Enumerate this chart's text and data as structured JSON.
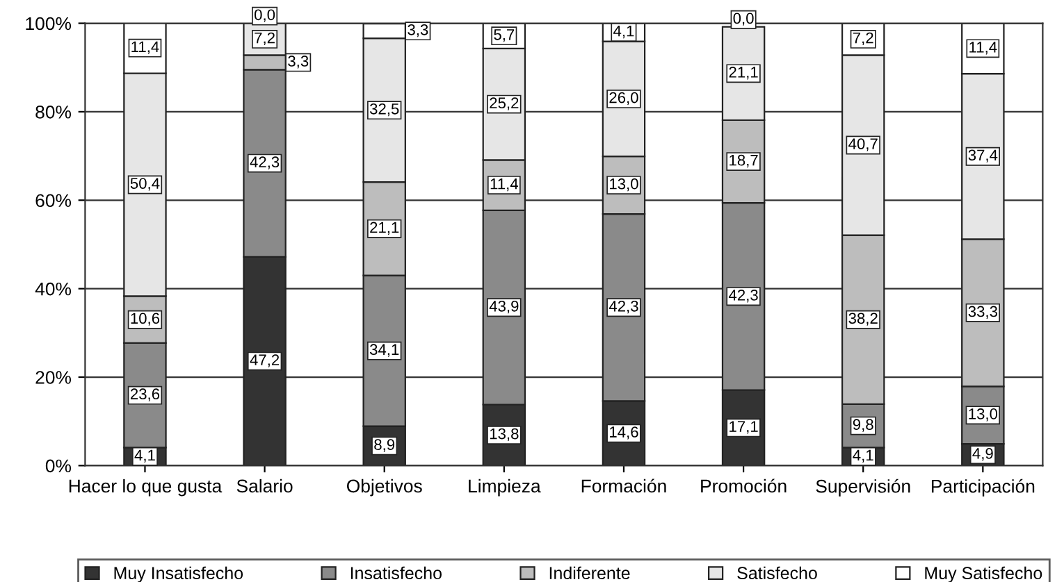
{
  "chart_data": {
    "type": "bar",
    "stacked": true,
    "categories": [
      "Hacer lo que gusta",
      "Salario",
      "Objetivos",
      "Limpieza",
      "Formación",
      "Promoción",
      "Supervisión",
      "Participación"
    ],
    "series": [
      {
        "name": "Muy Insatisfecho",
        "color": "#333333",
        "values": [
          4.1,
          47.2,
          8.9,
          13.8,
          14.6,
          17.1,
          4.1,
          4.9
        ],
        "value_labels": [
          "4,1",
          "47,2",
          "8,9",
          "13,8",
          "14,6",
          "17,1",
          "4,1",
          "4,9"
        ]
      },
      {
        "name": "Insatisfecho",
        "color": "#8a8a8a",
        "values": [
          23.6,
          42.3,
          34.1,
          43.9,
          42.3,
          42.3,
          9.8,
          13.0
        ],
        "value_labels": [
          "23,6",
          "42,3",
          "34,1",
          "43,9",
          "42,3",
          "42,3",
          "9,8",
          "13,0"
        ]
      },
      {
        "name": "Indiferente",
        "color": "#bdbdbd",
        "values": [
          10.6,
          3.3,
          21.1,
          11.4,
          13.0,
          18.7,
          38.2,
          33.3
        ],
        "value_labels": [
          "10,6",
          "3,3",
          "21,1",
          "11,4",
          "13,0",
          "18,7",
          "38,2",
          "33,3"
        ]
      },
      {
        "name": "Satisfecho",
        "color": "#e6e6e6",
        "values": [
          50.4,
          7.2,
          32.5,
          25.2,
          26.0,
          21.1,
          40.7,
          37.4
        ],
        "value_labels": [
          "50,4",
          "7,2",
          "32,5",
          "25,2",
          "26,0",
          "21,1",
          "40,7",
          "37,4"
        ]
      },
      {
        "name": "Muy Satisfecho",
        "color": "#ffffff",
        "values": [
          11.4,
          0.0,
          3.3,
          5.7,
          4.1,
          0.0,
          7.2,
          11.4
        ],
        "value_labels": [
          "11,4",
          "0,0",
          "3,3",
          "5,7",
          "4,1",
          "0,0",
          "7,2",
          "11,4"
        ]
      }
    ],
    "ylim": [
      0,
      100
    ],
    "yticks": [
      {
        "value": 0,
        "label": "0%"
      },
      {
        "value": 20,
        "label": "20%"
      },
      {
        "value": 40,
        "label": "40%"
      },
      {
        "value": 60,
        "label": "60%"
      },
      {
        "value": 80,
        "label": "80%"
      },
      {
        "value": 100,
        "label": "100%"
      }
    ],
    "grid": "y",
    "legend": "bottom"
  }
}
